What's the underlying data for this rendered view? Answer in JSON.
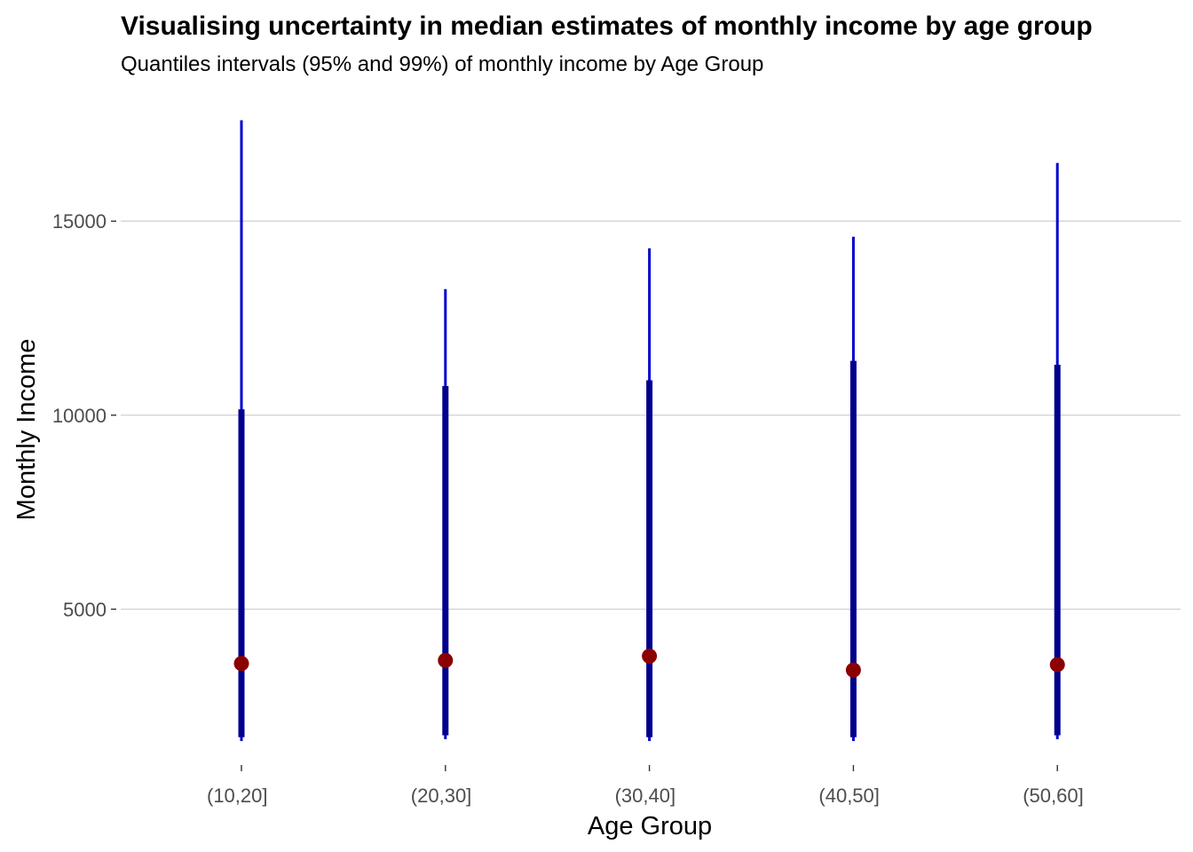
{
  "chart_data": {
    "type": "interval",
    "title": "Visualising uncertainty in median estimates of monthly income by age group",
    "subtitle": "Quantiles intervals (95% and 99%) of monthly income by Age Group",
    "xlabel": "Age Group",
    "ylabel": "Monthly Income",
    "ylim": [
      0,
      17600
    ],
    "yticks": [
      5000,
      10000,
      15000
    ],
    "grid": true,
    "categories": [
      "(10,20]",
      "(20,30]",
      "(30,40]",
      "(40,50]",
      "(50,60]"
    ],
    "median": [
      3600,
      3680,
      3790,
      3430,
      3570
    ],
    "interval_95": [
      [
        1700,
        10150
      ],
      [
        1750,
        10750
      ],
      [
        1700,
        10900
      ],
      [
        1700,
        11400
      ],
      [
        1750,
        11300
      ]
    ],
    "interval_99": [
      [
        1600,
        17600
      ],
      [
        1650,
        13250
      ],
      [
        1600,
        14300
      ],
      [
        1600,
        14600
      ],
      [
        1650,
        16500
      ]
    ],
    "colors": {
      "interval_95": "#00008b",
      "interval_99": "#0000cd",
      "median": "#8b0000",
      "grid": "#d3d3d3",
      "tick_text": "#4d4d4d"
    }
  }
}
